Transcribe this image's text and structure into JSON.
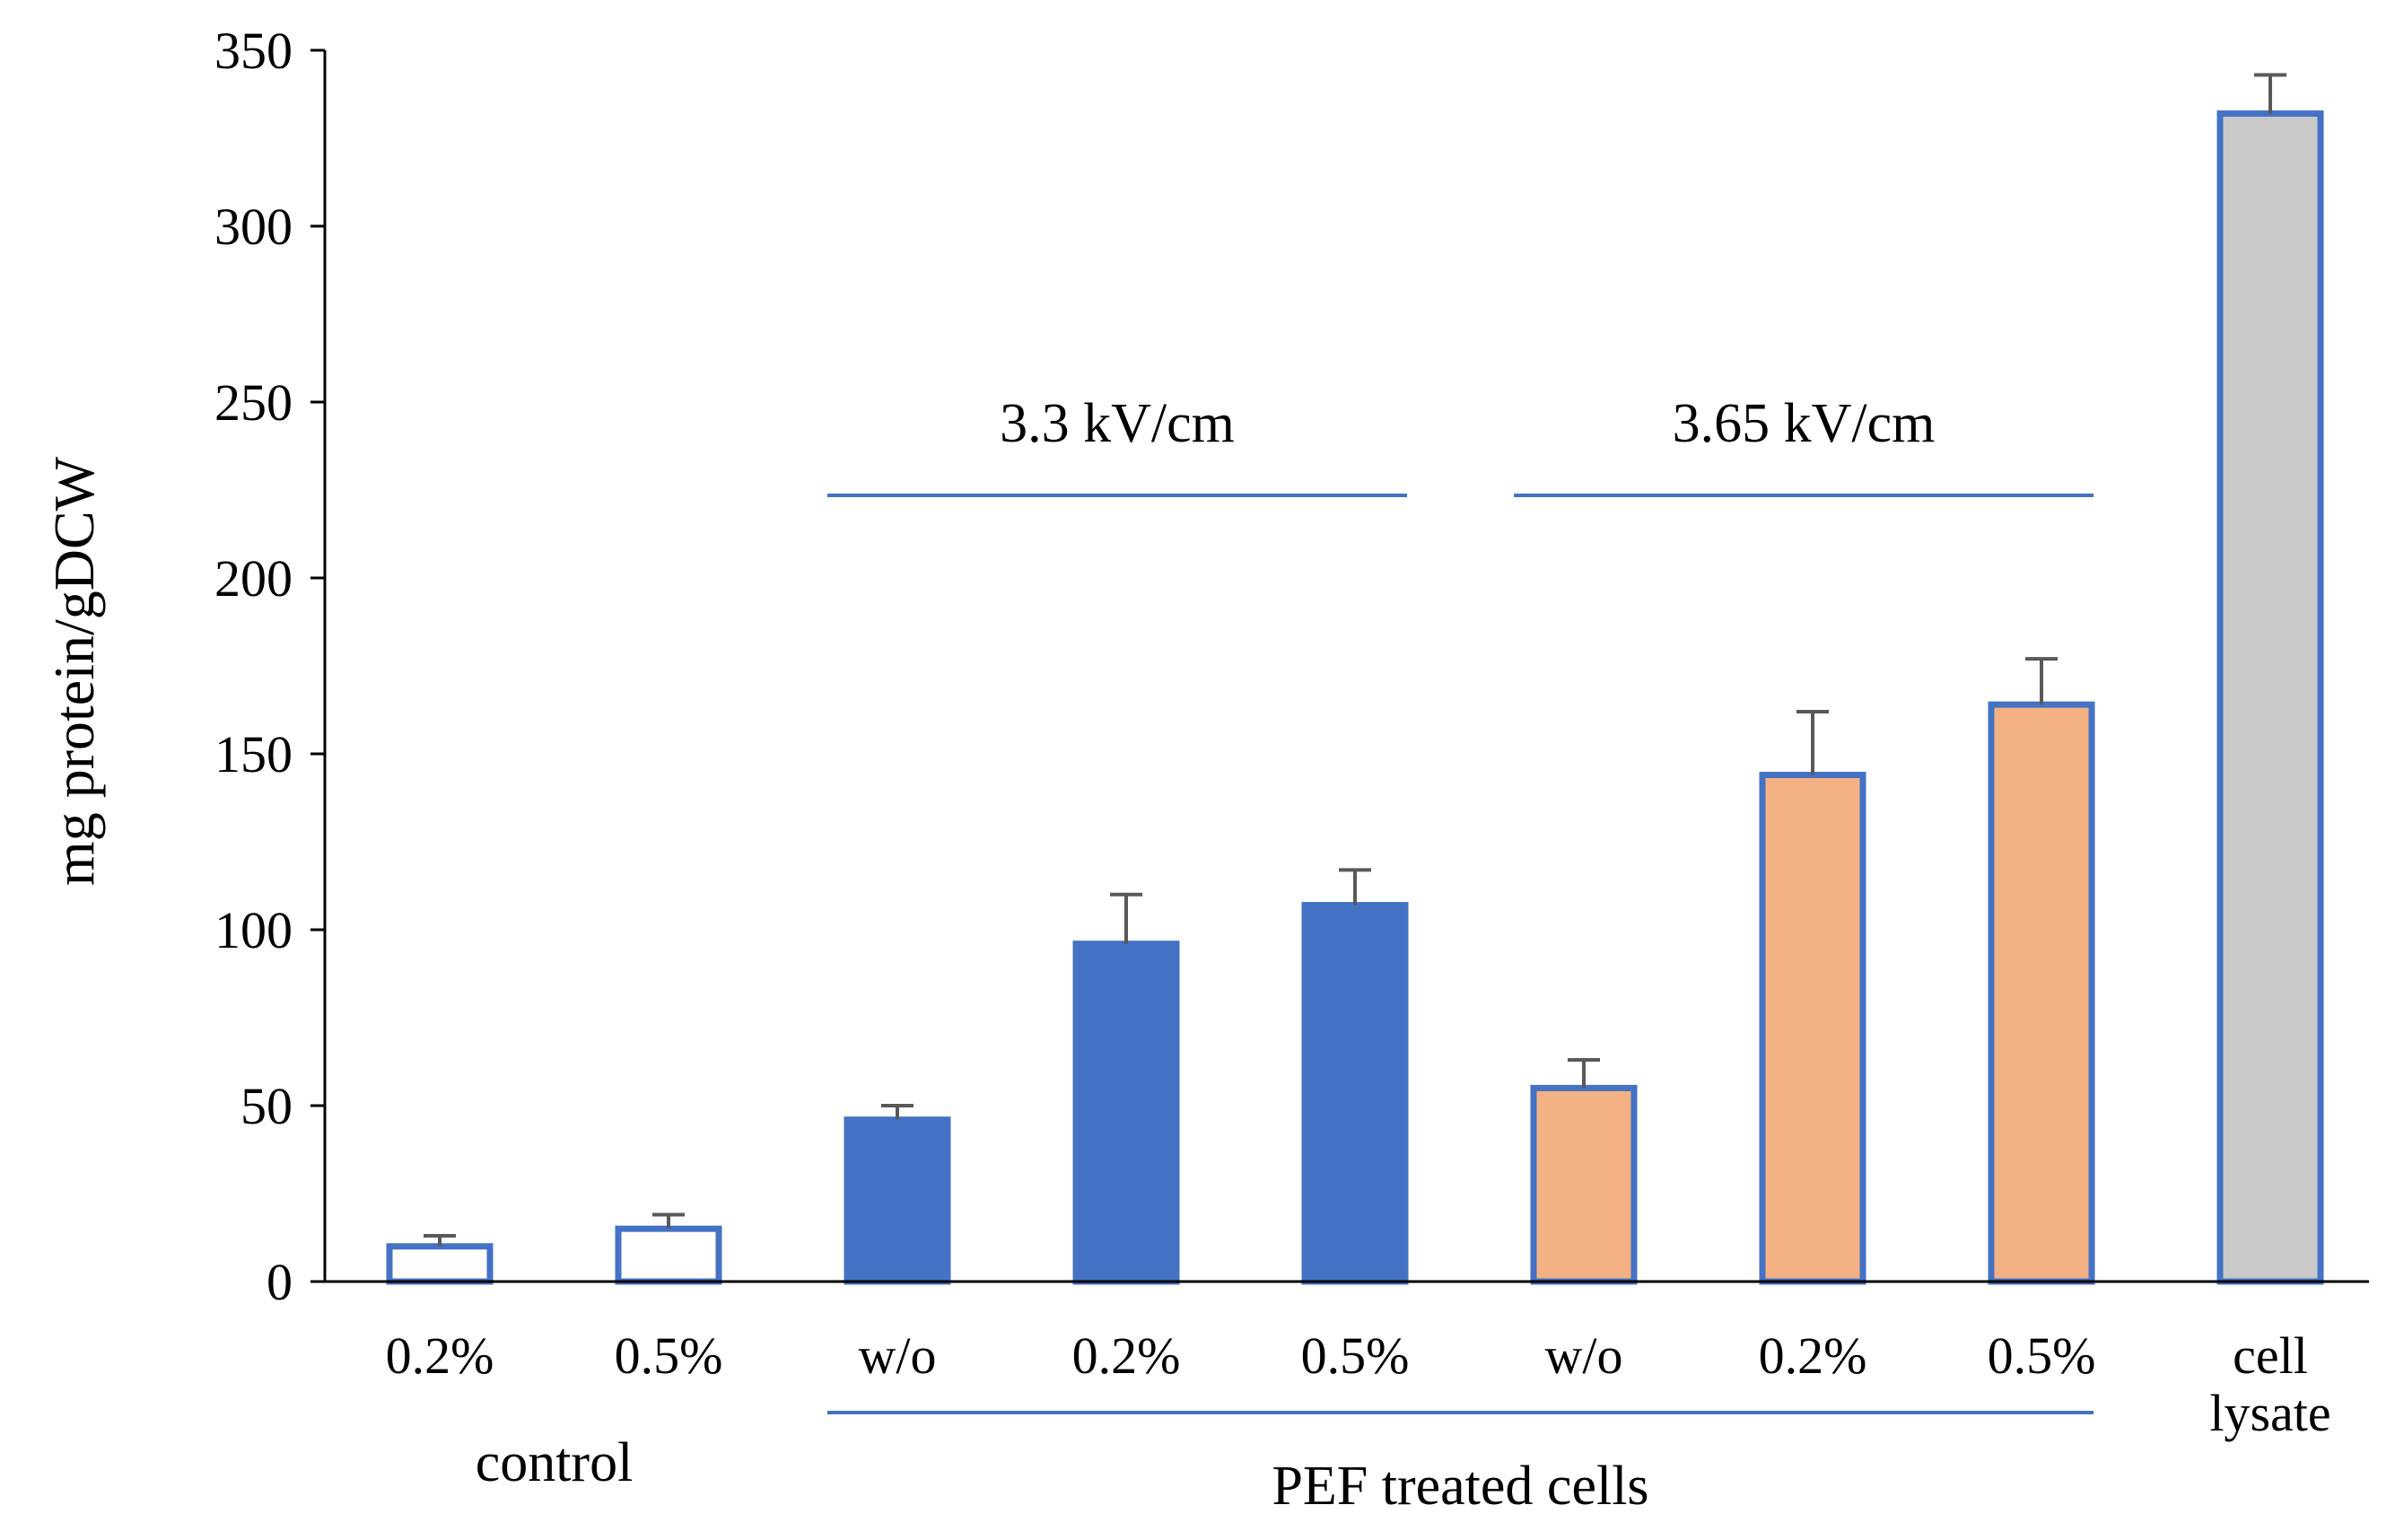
{
  "chart_data": {
    "type": "bar",
    "title": "",
    "xlabel": "",
    "ylabel": "mg protein/gDCW",
    "ylim": [
      0,
      350
    ],
    "yticks": [
      0,
      50,
      100,
      150,
      200,
      250,
      300,
      350
    ],
    "grid": false,
    "categories": [
      "0.2%",
      "0.5%",
      "w/o",
      "0.2%",
      "0.5%",
      "w/o",
      "0.2%",
      "0.5%",
      "cell lysate"
    ],
    "values": [
      10,
      15,
      46,
      96,
      107,
      55,
      144,
      164,
      332
    ],
    "errors": [
      3,
      4,
      4,
      14,
      10,
      8,
      18,
      13,
      11
    ],
    "styles": [
      "open",
      "open",
      "blue",
      "blue",
      "blue",
      "orange",
      "orange",
      "orange",
      "gray"
    ],
    "colors": {
      "outline": "#4472c4",
      "blue": "#4472c4",
      "orange": "#f4b183",
      "gray": "#c9c9c9",
      "open": "#ffffff",
      "error_bar": "#595959"
    },
    "field_labels": [
      {
        "text": "3.3 kV/cm",
        "from": 2,
        "to": 4
      },
      {
        "text": "3.65 kV/cm",
        "from": 5,
        "to": 7
      }
    ],
    "group_labels": [
      {
        "text": "control",
        "from": 0,
        "to": 1
      },
      {
        "text": "PEF treated cells",
        "from": 2,
        "to": 7
      }
    ]
  }
}
